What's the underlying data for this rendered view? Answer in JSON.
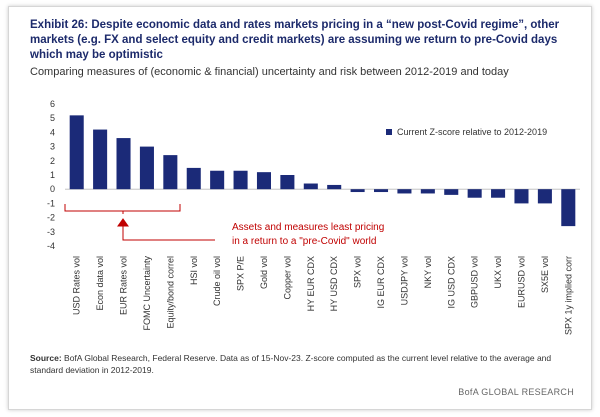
{
  "chart_data": {
    "type": "bar",
    "title": "Exhibit 26: Despite economic data and rates markets pricing in a “new post-Covid regime”, other markets (e.g. FX and select equity and credit markets) are assuming we return to pre-Covid days which may be optimistic",
    "subtitle": "Comparing measures of (economic & financial) uncertainty and risk between 2012-2019 and today",
    "categories": [
      "USD Rates vol",
      "Econ data vol",
      "EUR Rates vol",
      "FOMC Uncertainty",
      "Equity/bond correl",
      "HSI vol",
      "Crude oil vol",
      "SPX P/E",
      "Gold vol",
      "Copper vol",
      "HY EUR CDX",
      "HY USD CDX",
      "SPX vol",
      "IG EUR CDX",
      "USDJPY vol",
      "NKY vol",
      "IG USD CDX",
      "GBPUSD vol",
      "UKX vol",
      "EURUSD vol",
      "SX5E vol",
      "SPX 1y implied corr"
    ],
    "series": [
      {
        "name": "Current Z-score relative to 2012-2019",
        "color": "#1b2a78",
        "values": [
          5.2,
          4.2,
          3.6,
          3.0,
          2.4,
          1.5,
          1.3,
          1.3,
          1.2,
          1.0,
          0.4,
          0.3,
          -0.2,
          -0.2,
          -0.3,
          -0.3,
          -0.4,
          -0.6,
          -0.6,
          -1.0,
          -1.0,
          -2.6
        ]
      }
    ],
    "ylim": [
      -4,
      6
    ],
    "yticks": [
      -4,
      -3,
      -2,
      -1,
      0,
      1,
      2,
      3,
      4,
      5,
      6
    ],
    "grid": false,
    "annotation": [
      "Assets and measures least pricing",
      "in a return to a \"pre-Covid\" world"
    ],
    "source_label": "Source:",
    "source_text": "BofA Global Research, Federal Reserve. Data as of 15-Nov-23. Z-score computed as the current level relative to the average and standard deviation in 2012-2019.",
    "footer": "BofA GLOBAL RESEARCH"
  }
}
